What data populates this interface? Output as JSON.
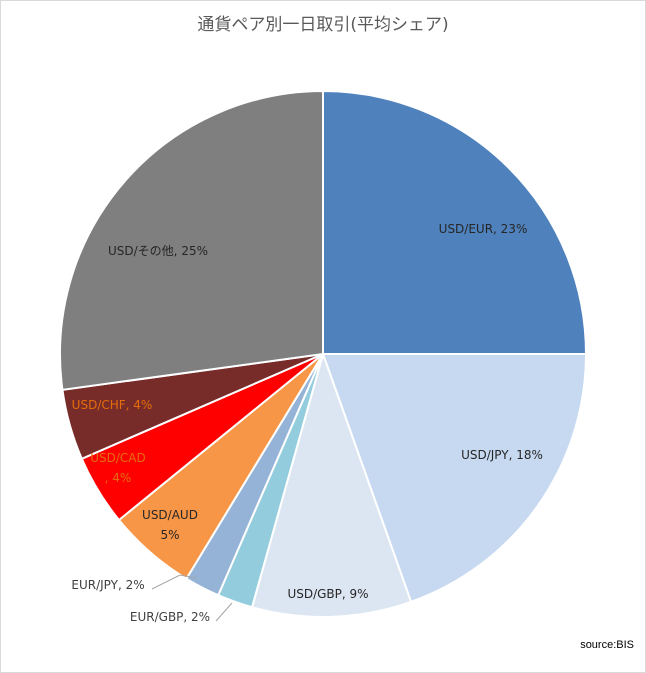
{
  "chart_data": {
    "type": "pie",
    "title": "通貨ペア別一日取引(平均シェア)",
    "categories": [
      "USD/EUR",
      "USD/JPY",
      "USD/GBP",
      "EUR/GBP",
      "EUR/JPY",
      "USD/AUD",
      "USD/CAD",
      "USD/CHF",
      "USD/その他"
    ],
    "values": [
      23,
      18,
      9,
      2,
      2,
      5,
      4,
      4,
      25
    ],
    "value_labels": [
      "23%",
      "18%",
      "9%",
      "2%",
      "2%",
      "5%",
      "4%",
      "4%",
      "25%"
    ],
    "colors": [
      "#4f81bd",
      "#c6d9f1",
      "#dce6f2",
      "#93cddd",
      "#95b3d7",
      "#f79646",
      "#ff0000",
      "#772c2a",
      "#7f7f7f"
    ],
    "label_colors": [
      "#262626",
      "#262626",
      "#262626",
      "#404040",
      "#404040",
      "#262626",
      "#e46c0a",
      "#e46c0a",
      "#262626"
    ],
    "legend": "none",
    "start_angle": "12 o'clock, clockwise"
  },
  "source": "source:BIS"
}
